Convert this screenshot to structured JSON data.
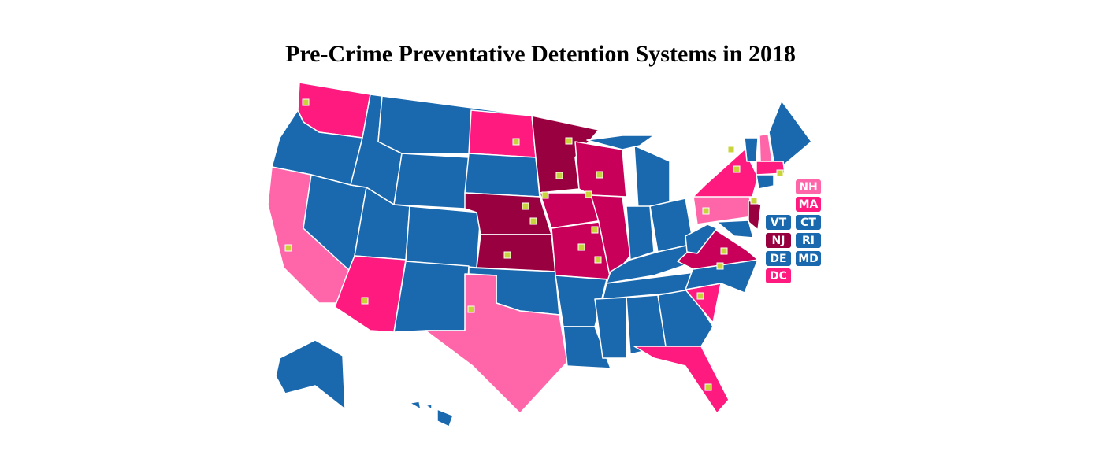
{
  "title": "Pre-Crime Preventative Detention Systems in 2018",
  "labels": [
    "NH",
    "MA",
    "VT",
    "CT",
    "NJ",
    "RI",
    "DE",
    "MD",
    "DC"
  ]
}
